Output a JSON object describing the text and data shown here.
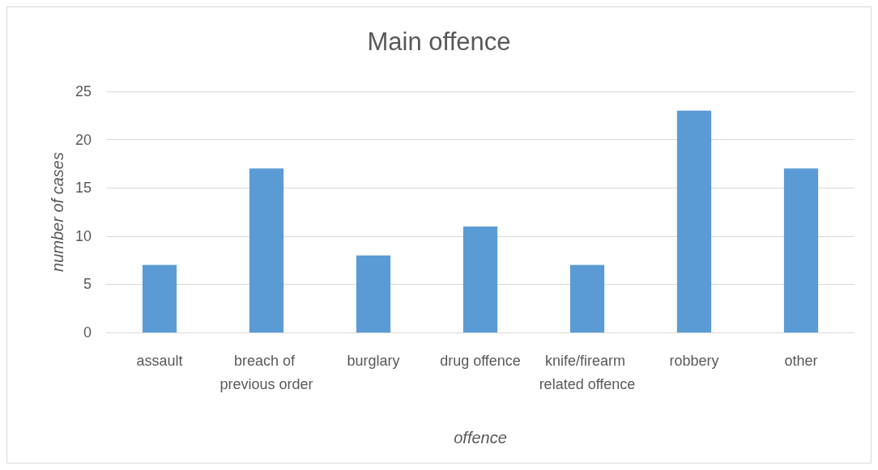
{
  "chart_data": {
    "type": "bar",
    "title": "Main offence",
    "xlabel": "offence",
    "ylabel": "number of cases",
    "categories": [
      "assault",
      "breach of previous order",
      "burglary",
      "drug offence",
      "knife/firearm related offence",
      "robbery",
      "other"
    ],
    "values": [
      7,
      17,
      8,
      11,
      7,
      23,
      17
    ],
    "color": "#5b9bd5",
    "ylim": [
      0,
      25
    ],
    "yticks": [
      0,
      5,
      10,
      15,
      20,
      25
    ],
    "grid": "y"
  }
}
